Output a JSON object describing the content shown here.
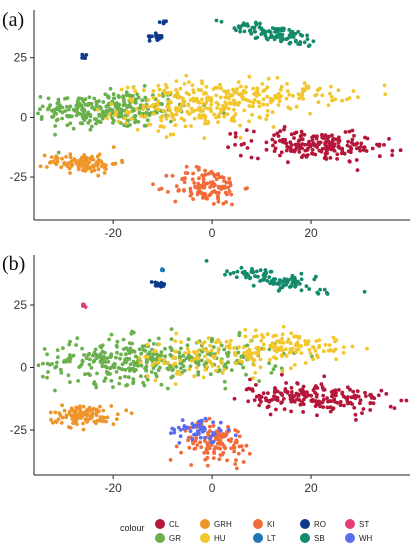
{
  "chart_data": [
    {
      "panel": "(a)",
      "type": "scatter",
      "xlim": [
        -36,
        40
      ],
      "ylim": [
        -43,
        45
      ],
      "xticks": [
        "-20",
        "0",
        "20"
      ],
      "xtick_values": [
        -20,
        0,
        20
      ],
      "yticks": [
        "25",
        "0",
        "-25"
      ],
      "ytick_values": [
        25,
        0,
        -25
      ],
      "grid": false,
      "clusters": [
        {
          "label": "GR",
          "cx": -20,
          "cy": 3,
          "sx": 8,
          "sy": 4,
          "n": 240,
          "rot": 0.08
        },
        {
          "label": "GR",
          "cx": -26,
          "cy": 5,
          "sx": 4,
          "sy": 3,
          "n": 40,
          "rot": 0
        },
        {
          "label": "HU",
          "cx": -3,
          "cy": 5,
          "sx": 8,
          "sy": 5,
          "n": 260,
          "rot": 0.1
        },
        {
          "label": "HU",
          "cx": 14,
          "cy": 9,
          "sx": 7,
          "sy": 2.5,
          "n": 90,
          "rot": 0.05
        },
        {
          "label": "CL",
          "cx": 21,
          "cy": -12,
          "sx": 7,
          "sy": 3,
          "n": 200,
          "rot": -0.12
        },
        {
          "label": "GRH",
          "cx": -26,
          "cy": -19,
          "sx": 3.5,
          "sy": 2,
          "n": 110,
          "rot": -0.05
        },
        {
          "label": "KI",
          "cx": -1,
          "cy": -29,
          "sx": 3.5,
          "sy": 4,
          "n": 120,
          "rot": 0
        },
        {
          "label": "SB",
          "cx": 13,
          "cy": 35,
          "sx": 5,
          "sy": 1.6,
          "n": 100,
          "rot": -0.45
        },
        {
          "label": "RO",
          "cx": -11,
          "cy": 34,
          "sx": 0.8,
          "sy": 0.8,
          "n": 14,
          "rot": 0
        },
        {
          "label": "RO",
          "cx": -10,
          "cy": 40,
          "sx": 0.5,
          "sy": 0.3,
          "n": 5,
          "rot": 0
        },
        {
          "label": "RO",
          "cx": -26,
          "cy": 25,
          "sx": 0.4,
          "sy": 0.6,
          "n": 6,
          "rot": 0
        }
      ]
    },
    {
      "panel": "(b)",
      "type": "scatter",
      "xlim": [
        -36,
        40
      ],
      "ylim": [
        -43,
        45
      ],
      "xticks": [
        "-20",
        "0",
        "20"
      ],
      "xtick_values": [
        -20,
        0,
        20
      ],
      "yticks": [
        "25",
        "0",
        "-25"
      ],
      "ytick_values": [
        25,
        0,
        -25
      ],
      "grid": false,
      "clusters": [
        {
          "label": "GR",
          "cx": -17,
          "cy": 3,
          "sx": 9,
          "sy": 4.5,
          "n": 300,
          "rot": 0.08
        },
        {
          "label": "GR",
          "cx": 3,
          "cy": 3,
          "sx": 6,
          "sy": 4,
          "n": 80,
          "rot": 0.1
        },
        {
          "label": "HU",
          "cx": 2,
          "cy": 5,
          "sx": 9,
          "sy": 4,
          "n": 140,
          "rot": 0.1
        },
        {
          "label": "HU",
          "cx": 16,
          "cy": 9,
          "sx": 6,
          "sy": 2.5,
          "n": 80,
          "rot": 0.05
        },
        {
          "label": "CL",
          "cx": 21,
          "cy": -12,
          "sx": 7,
          "sy": 3,
          "n": 200,
          "rot": -0.12
        },
        {
          "label": "GRH",
          "cx": -26,
          "cy": -19,
          "sx": 3.5,
          "sy": 2,
          "n": 110,
          "rot": -0.05
        },
        {
          "label": "KI",
          "cx": 1,
          "cy": -30,
          "sx": 3.5,
          "sy": 4,
          "n": 110,
          "rot": 0
        },
        {
          "label": "WH",
          "cx": -3,
          "cy": -25,
          "sx": 3,
          "sy": 2.5,
          "n": 55,
          "rot": 0
        },
        {
          "label": "SB",
          "cx": 13,
          "cy": 35,
          "sx": 5,
          "sy": 1.6,
          "n": 100,
          "rot": -0.45
        },
        {
          "label": "RO",
          "cx": -11,
          "cy": 33,
          "sx": 0.8,
          "sy": 0.8,
          "n": 14,
          "rot": 0
        },
        {
          "label": "LT",
          "cx": -10,
          "cy": 39,
          "sx": 0.4,
          "sy": 0.3,
          "n": 4,
          "rot": 0
        },
        {
          "label": "ST",
          "cx": -26,
          "cy": 25,
          "sx": 0.4,
          "sy": 0.5,
          "n": 6,
          "rot": 0
        }
      ]
    }
  ],
  "legend": {
    "title": "colour",
    "position": "bottom",
    "items": [
      {
        "label": "CL",
        "color": "#b5173b"
      },
      {
        "label": "GR",
        "color": "#6ab04c"
      },
      {
        "label": "GRH",
        "color": "#f0952a"
      },
      {
        "label": "HU",
        "color": "#f2c62c"
      },
      {
        "label": "KI",
        "color": "#f26b3a"
      },
      {
        "label": "LT",
        "color": "#1f78b4"
      },
      {
        "label": "RO",
        "color": "#0d3a8a"
      },
      {
        "label": "SB",
        "color": "#138a6b"
      },
      {
        "label": "ST",
        "color": "#e63d7a"
      },
      {
        "label": "WH",
        "color": "#5b6cf0"
      }
    ]
  },
  "colors": {
    "GR_HU_blend": "#a8c23a"
  }
}
